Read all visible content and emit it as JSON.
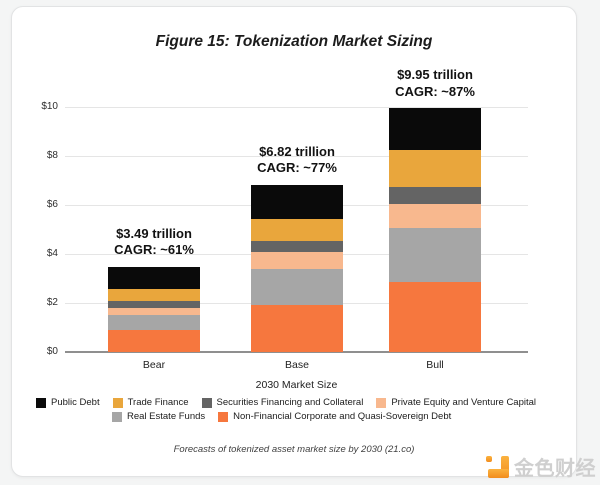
{
  "figure": {
    "title": "Figure 15: Tokenization Market Sizing",
    "caption": "Forecasts of tokenized asset market size by 2030 (21.co)"
  },
  "chart_data": {
    "type": "bar",
    "stacked": true,
    "title": "Figure 15: Tokenization Market Sizing",
    "categories": [
      "Bear",
      "Base",
      "Bull"
    ],
    "xlabel": "2030 Market Size",
    "ylabel": "",
    "unit": "trillion USD",
    "ylim": [
      0,
      10
    ],
    "yticks": [
      0,
      2,
      4,
      6,
      8,
      10
    ],
    "ytick_labels": [
      "$0",
      "$2",
      "$4",
      "$6",
      "$8",
      "$10"
    ],
    "grid": true,
    "legend_position": "bottom",
    "series": [
      {
        "name": "Non-Financial Corporate and Quasi-Sovereign Debt",
        "color": "#f6773e",
        "values": [
          0.88,
          1.9,
          2.85
        ]
      },
      {
        "name": "Real Estate Funds",
        "color": "#a6a6a6",
        "values": [
          0.63,
          1.5,
          2.2
        ]
      },
      {
        "name": "Private Equity and Venture Capital",
        "color": "#f8b88e",
        "values": [
          0.3,
          0.7,
          1.0
        ]
      },
      {
        "name": "Securities Financing and Collateral",
        "color": "#646464",
        "values": [
          0.28,
          0.42,
          0.7
        ]
      },
      {
        "name": "Trade Finance",
        "color": "#e9a63c",
        "values": [
          0.5,
          0.9,
          1.5
        ]
      },
      {
        "name": "Public Debt",
        "color": "#0a0a0a",
        "values": [
          0.9,
          1.4,
          1.7
        ]
      }
    ],
    "totals": [
      "$3.49 trillion",
      "$6.82 trillion",
      "$9.95 trillion"
    ],
    "cagr": [
      "CAGR: ~61%",
      "CAGR: ~77%",
      "CAGR: ~87%"
    ]
  },
  "legend": {
    "rows": [
      [
        {
          "label": "Public Debt",
          "color": "#0a0a0a"
        },
        {
          "label": "Trade Finance",
          "color": "#e9a63c"
        },
        {
          "label": "Securities Financing and Collateral",
          "color": "#646464"
        },
        {
          "label": "Private Equity and Venture Capital",
          "color": "#f8b88e"
        }
      ],
      [
        {
          "label": "Real Estate Funds",
          "color": "#a6a6a6"
        },
        {
          "label": "Non-Financial Corporate and Quasi-Sovereign Debt",
          "color": "#f6773e"
        }
      ]
    ]
  },
  "watermark": {
    "text": "金色财经",
    "icon_color": "#f7a01d"
  }
}
